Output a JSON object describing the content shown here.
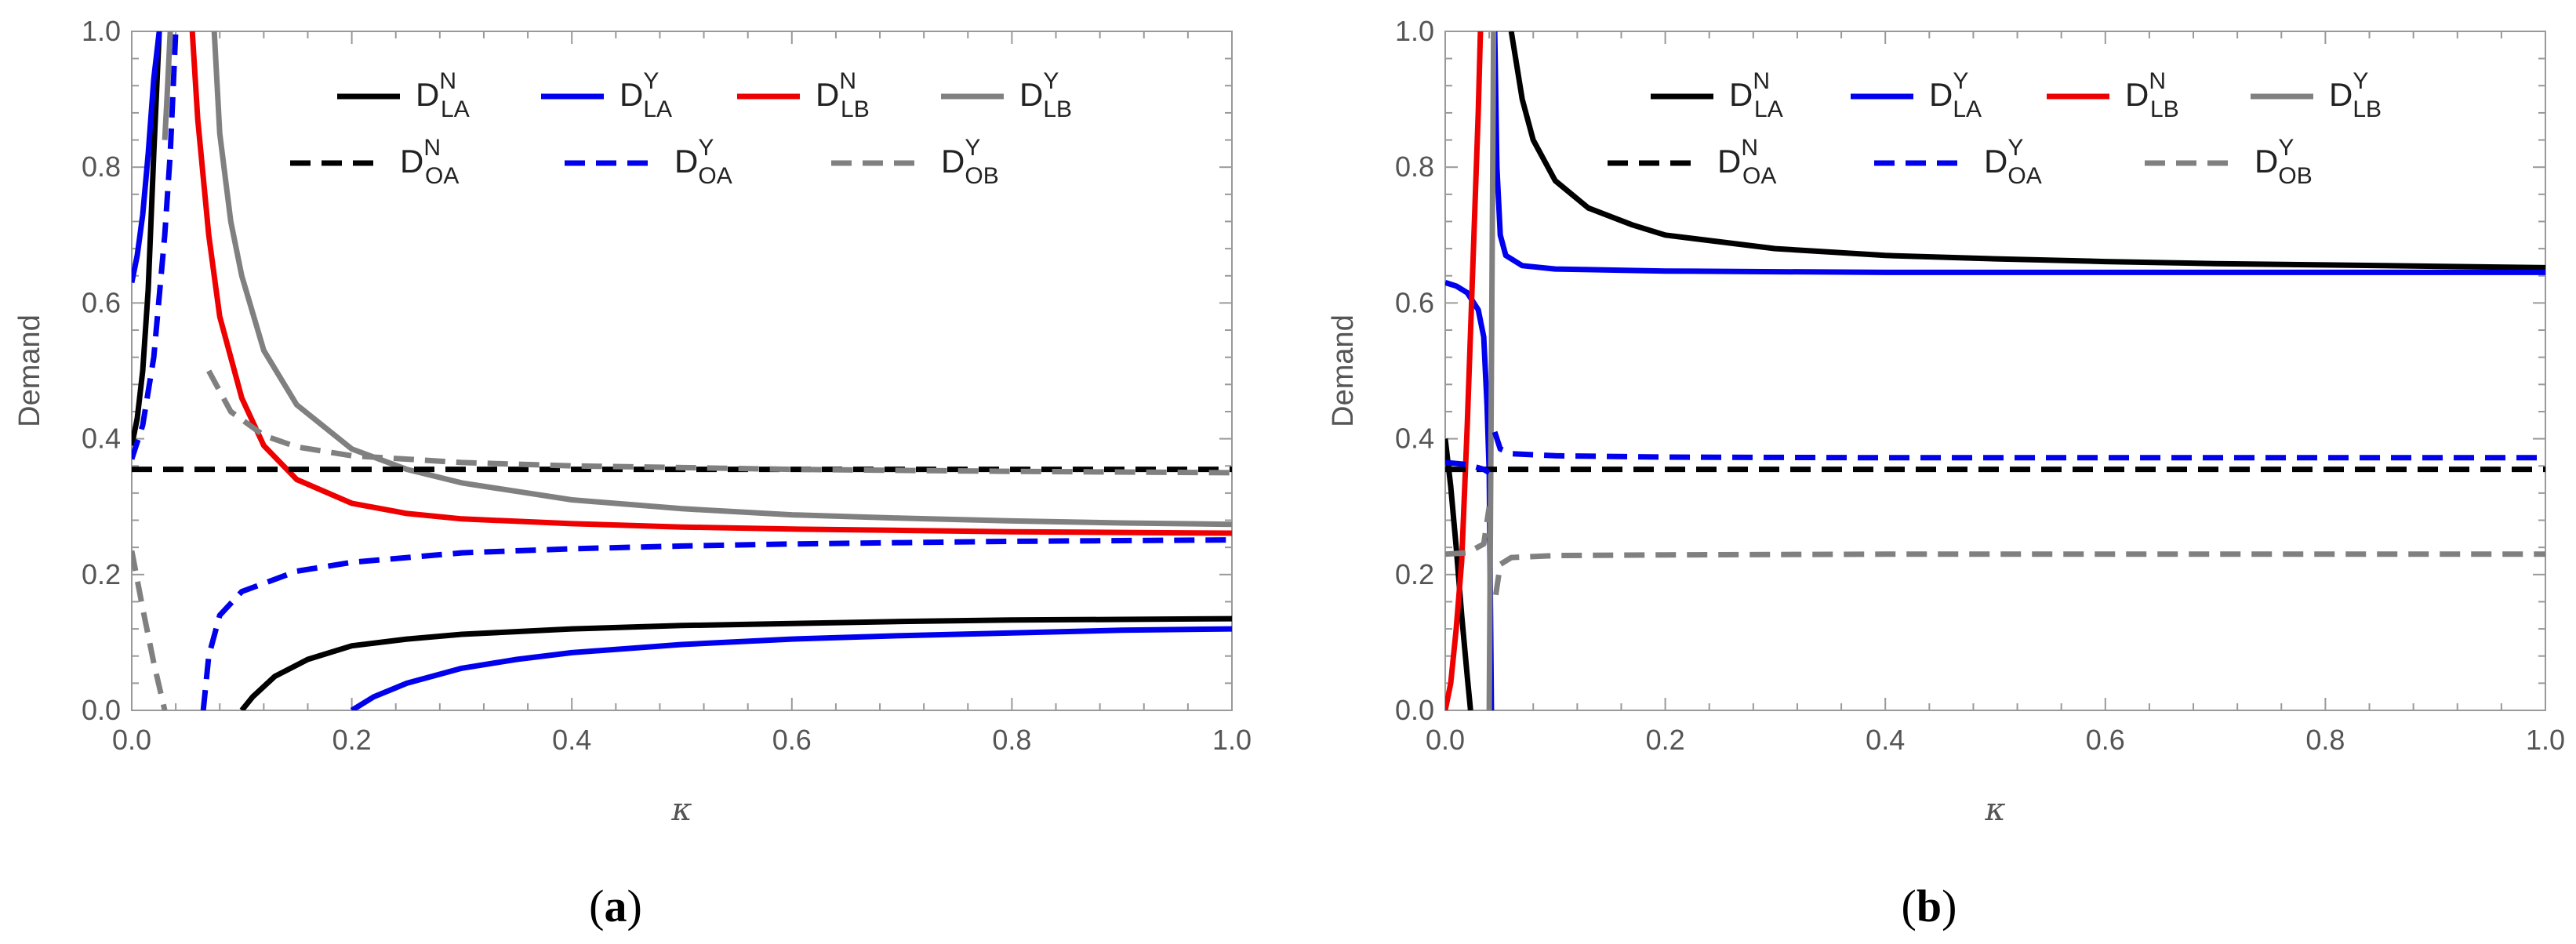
{
  "figure": {
    "panels": [
      "a",
      "b"
    ]
  },
  "chart_data": [
    {
      "panel_label": "a",
      "type": "line",
      "title": "",
      "xlabel": "κ",
      "ylabel": "Demand",
      "xlim": [
        0.0,
        1.0
      ],
      "ylim": [
        0.0,
        1.0
      ],
      "xticks": [
        "0.0",
        "0.2",
        "0.4",
        "0.6",
        "0.8",
        "1.0"
      ],
      "yticks": [
        "0.0",
        "0.2",
        "0.4",
        "0.6",
        "0.8",
        "1.0"
      ],
      "legend": {
        "placement": "top-right",
        "rows": [
          [
            "D_LA^N",
            "D_LA^Y",
            "D_LB^N",
            "D_LB^Y"
          ],
          [
            "D_OA^N",
            "D_OA^Y",
            "D_OB^Y"
          ]
        ]
      },
      "series": [
        {
          "name": "D_LA^N",
          "base": "D",
          "sub": "LA",
          "sup": "N",
          "color": "#000000",
          "dash": "solid",
          "segments": [
            [
              [
                0.0,
                0.39
              ],
              [
                0.005,
                0.43
              ],
              [
                0.01,
                0.5
              ],
              [
                0.015,
                0.62
              ],
              [
                0.02,
                0.82
              ],
              [
                0.025,
                1.0
              ]
            ],
            [
              [
                0.1,
                0.0
              ],
              [
                0.11,
                0.02
              ],
              [
                0.13,
                0.05
              ],
              [
                0.16,
                0.075
              ],
              [
                0.2,
                0.095
              ],
              [
                0.25,
                0.105
              ],
              [
                0.3,
                0.112
              ],
              [
                0.4,
                0.12
              ],
              [
                0.5,
                0.125
              ],
              [
                0.6,
                0.128
              ],
              [
                0.7,
                0.131
              ],
              [
                0.8,
                0.133
              ],
              [
                0.9,
                0.134
              ],
              [
                1.0,
                0.135
              ]
            ]
          ]
        },
        {
          "name": "D_LA^Y",
          "base": "D",
          "sub": "LA",
          "sup": "Y",
          "color": "#0000ee",
          "dash": "solid",
          "segments": [
            [
              [
                0.0,
                0.63
              ],
              [
                0.005,
                0.67
              ],
              [
                0.01,
                0.73
              ],
              [
                0.015,
                0.82
              ],
              [
                0.02,
                0.93
              ],
              [
                0.025,
                1.0
              ]
            ],
            [
              [
                0.2,
                0.0
              ],
              [
                0.22,
                0.02
              ],
              [
                0.25,
                0.04
              ],
              [
                0.3,
                0.062
              ],
              [
                0.35,
                0.075
              ],
              [
                0.4,
                0.085
              ],
              [
                0.5,
                0.097
              ],
              [
                0.6,
                0.105
              ],
              [
                0.7,
                0.11
              ],
              [
                0.8,
                0.114
              ],
              [
                0.9,
                0.118
              ],
              [
                1.0,
                0.12
              ]
            ]
          ]
        },
        {
          "name": "D_LB^N",
          "base": "D",
          "sub": "LB",
          "sup": "N",
          "color": "#ee0000",
          "dash": "solid",
          "segments": [
            [
              [
                0.055,
                1.0
              ],
              [
                0.06,
                0.87
              ],
              [
                0.07,
                0.7
              ],
              [
                0.08,
                0.58
              ],
              [
                0.1,
                0.46
              ],
              [
                0.12,
                0.39
              ],
              [
                0.15,
                0.34
              ],
              [
                0.2,
                0.305
              ],
              [
                0.25,
                0.29
              ],
              [
                0.3,
                0.282
              ],
              [
                0.4,
                0.275
              ],
              [
                0.5,
                0.27
              ],
              [
                0.6,
                0.267
              ],
              [
                0.7,
                0.265
              ],
              [
                0.8,
                0.263
              ],
              [
                0.9,
                0.262
              ],
              [
                1.0,
                0.261
              ]
            ]
          ]
        },
        {
          "name": "D_LB^Y",
          "base": "D",
          "sub": "LB",
          "sup": "Y",
          "color": "#808080",
          "dash": "solid",
          "segments": [
            [
              [
                0.035,
                1.0
              ],
              [
                0.032,
                0.9
              ],
              [
                0.03,
                0.84
              ]
            ],
            [
              [
                0.075,
                1.0
              ],
              [
                0.08,
                0.85
              ],
              [
                0.09,
                0.72
              ],
              [
                0.1,
                0.64
              ],
              [
                0.12,
                0.53
              ],
              [
                0.15,
                0.45
              ],
              [
                0.2,
                0.385
              ],
              [
                0.25,
                0.355
              ],
              [
                0.3,
                0.335
              ],
              [
                0.4,
                0.31
              ],
              [
                0.5,
                0.297
              ],
              [
                0.6,
                0.288
              ],
              [
                0.7,
                0.283
              ],
              [
                0.8,
                0.279
              ],
              [
                0.9,
                0.276
              ],
              [
                1.0,
                0.274
              ]
            ]
          ]
        },
        {
          "name": "D_OA^N",
          "base": "D",
          "sub": "OA",
          "sup": "N",
          "color": "#000000",
          "dash": "dashed",
          "segments": [
            [
              [
                0.0,
                0.355
              ],
              [
                1.0,
                0.355
              ]
            ]
          ]
        },
        {
          "name": "D_OA^Y",
          "base": "D",
          "sub": "OA",
          "sup": "Y",
          "color": "#0000ee",
          "dash": "dashed",
          "segments": [
            [
              [
                0.0,
                0.37
              ],
              [
                0.01,
                0.42
              ],
              [
                0.02,
                0.52
              ],
              [
                0.03,
                0.7
              ],
              [
                0.035,
                0.82
              ],
              [
                0.04,
                1.0
              ]
            ],
            [
              [
                0.065,
                0.0
              ],
              [
                0.07,
                0.08
              ],
              [
                0.08,
                0.14
              ],
              [
                0.1,
                0.175
              ],
              [
                0.15,
                0.205
              ],
              [
                0.2,
                0.218
              ],
              [
                0.3,
                0.232
              ],
              [
                0.4,
                0.238
              ],
              [
                0.5,
                0.242
              ],
              [
                0.6,
                0.245
              ],
              [
                0.7,
                0.247
              ],
              [
                0.8,
                0.249
              ],
              [
                0.9,
                0.25
              ],
              [
                1.0,
                0.251
              ]
            ]
          ]
        },
        {
          "name": "D_OB^Y",
          "base": "D",
          "sub": "OB",
          "sup": "Y",
          "color": "#808080",
          "dash": "dashed",
          "segments": [
            [
              [
                0.0,
                0.235
              ],
              [
                0.01,
                0.15
              ],
              [
                0.02,
                0.07
              ],
              [
                0.03,
                0.0
              ]
            ],
            [
              [
                0.07,
                0.5
              ],
              [
                0.09,
                0.44
              ],
              [
                0.12,
                0.405
              ],
              [
                0.15,
                0.388
              ],
              [
                0.2,
                0.375
              ],
              [
                0.3,
                0.365
              ],
              [
                0.4,
                0.36
              ],
              [
                0.6,
                0.355
              ],
              [
                0.8,
                0.352
              ],
              [
                1.0,
                0.35
              ]
            ]
          ]
        }
      ]
    },
    {
      "panel_label": "b",
      "type": "line",
      "title": "",
      "xlabel": "κ",
      "ylabel": "Demand",
      "xlim": [
        0.0,
        1.0
      ],
      "ylim": [
        0.0,
        1.0
      ],
      "xticks": [
        "0.0",
        "0.2",
        "0.4",
        "0.6",
        "0.8",
        "1.0"
      ],
      "yticks": [
        "0.0",
        "0.2",
        "0.4",
        "0.6",
        "0.8",
        "1.0"
      ],
      "legend": {
        "placement": "top-right",
        "rows": [
          [
            "D_LA^N",
            "D_LA^Y",
            "D_LB^N",
            "D_LB^Y"
          ],
          [
            "D_OA^N",
            "D_OA^Y",
            "D_OB^Y"
          ]
        ]
      },
      "series": [
        {
          "name": "D_LA^N",
          "base": "D",
          "sub": "LA",
          "sup": "N",
          "color": "#000000",
          "dash": "solid",
          "segments": [
            [
              [
                0.0,
                0.4
              ],
              [
                0.005,
                0.33
              ],
              [
                0.01,
                0.24
              ],
              [
                0.015,
                0.14
              ],
              [
                0.02,
                0.05
              ],
              [
                0.023,
                0.0
              ]
            ],
            [
              [
                0.06,
                1.0
              ],
              [
                0.07,
                0.9
              ],
              [
                0.08,
                0.84
              ],
              [
                0.1,
                0.78
              ],
              [
                0.13,
                0.74
              ],
              [
                0.17,
                0.715
              ],
              [
                0.2,
                0.7
              ],
              [
                0.3,
                0.68
              ],
              [
                0.4,
                0.67
              ],
              [
                0.5,
                0.665
              ],
              [
                0.6,
                0.661
              ],
              [
                0.7,
                0.658
              ],
              [
                0.8,
                0.656
              ],
              [
                0.9,
                0.654
              ],
              [
                1.0,
                0.652
              ]
            ]
          ]
        },
        {
          "name": "D_LA^Y",
          "base": "D",
          "sub": "LA",
          "sup": "Y",
          "color": "#0000ee",
          "dash": "solid",
          "segments": [
            [
              [
                0.0,
                0.63
              ],
              [
                0.01,
                0.625
              ],
              [
                0.02,
                0.615
              ],
              [
                0.03,
                0.59
              ],
              [
                0.035,
                0.55
              ],
              [
                0.038,
                0.45
              ],
              [
                0.04,
                0.35
              ],
              [
                0.042,
                0.0
              ]
            ],
            [
              [
                0.045,
                1.0
              ],
              [
                0.047,
                0.8
              ],
              [
                0.05,
                0.7
              ],
              [
                0.055,
                0.67
              ],
              [
                0.07,
                0.655
              ],
              [
                0.1,
                0.65
              ],
              [
                0.2,
                0.647
              ],
              [
                0.4,
                0.645
              ],
              [
                0.6,
                0.645
              ],
              [
                0.8,
                0.645
              ],
              [
                1.0,
                0.645
              ]
            ]
          ]
        },
        {
          "name": "D_LB^N",
          "base": "D",
          "sub": "LB",
          "sup": "N",
          "color": "#ee0000",
          "dash": "solid",
          "segments": [
            [
              [
                0.0,
                0.0
              ],
              [
                0.005,
                0.04
              ],
              [
                0.01,
                0.12
              ],
              [
                0.015,
                0.22
              ],
              [
                0.02,
                0.42
              ],
              [
                0.025,
                0.65
              ],
              [
                0.03,
                0.88
              ],
              [
                0.032,
                1.0
              ]
            ]
          ]
        },
        {
          "name": "D_LB^Y",
          "base": "D",
          "sub": "LB",
          "sup": "Y",
          "color": "#808080",
          "dash": "solid",
          "segments": [
            [
              [
                0.04,
                0.0
              ],
              [
                0.041,
                0.25
              ],
              [
                0.042,
                0.5
              ],
              [
                0.043,
                0.75
              ],
              [
                0.044,
                1.0
              ]
            ]
          ]
        },
        {
          "name": "D_OA^N",
          "base": "D",
          "sub": "OA",
          "sup": "N",
          "color": "#000000",
          "dash": "dashed",
          "segments": [
            [
              [
                0.0,
                0.355
              ],
              [
                1.0,
                0.355
              ]
            ]
          ]
        },
        {
          "name": "D_OA^Y",
          "base": "D",
          "sub": "OA",
          "sup": "Y",
          "color": "#0000ee",
          "dash": "dashed",
          "segments": [
            [
              [
                0.0,
                0.365
              ],
              [
                0.02,
                0.362
              ],
              [
                0.035,
                0.355
              ],
              [
                0.04,
                0.35
              ]
            ],
            [
              [
                0.045,
                0.41
              ],
              [
                0.05,
                0.385
              ],
              [
                0.06,
                0.378
              ],
              [
                0.1,
                0.375
              ],
              [
                0.2,
                0.373
              ],
              [
                0.4,
                0.372
              ],
              [
                0.6,
                0.372
              ],
              [
                0.8,
                0.372
              ],
              [
                1.0,
                0.372
              ]
            ]
          ]
        },
        {
          "name": "D_OB^Y",
          "base": "D",
          "sub": "OB",
          "sup": "Y",
          "color": "#808080",
          "dash": "dashed",
          "segments": [
            [
              [
                0.0,
                0.23
              ],
              [
                0.02,
                0.232
              ],
              [
                0.035,
                0.245
              ],
              [
                0.04,
                0.3
              ]
            ],
            [
              [
                0.046,
                0.17
              ],
              [
                0.05,
                0.215
              ],
              [
                0.06,
                0.225
              ],
              [
                0.1,
                0.228
              ],
              [
                0.2,
                0.229
              ],
              [
                0.4,
                0.23
              ],
              [
                0.6,
                0.23
              ],
              [
                0.8,
                0.23
              ],
              [
                1.0,
                0.23
              ]
            ]
          ]
        }
      ]
    }
  ]
}
